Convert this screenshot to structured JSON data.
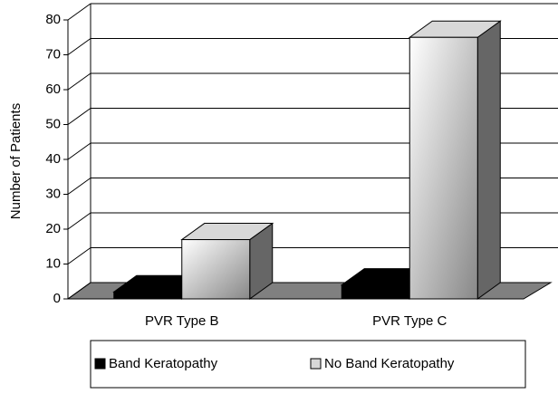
{
  "chart_data": {
    "type": "bar3d",
    "y_label": "Number of Patients",
    "categories": [
      "PVR Type B",
      "PVR Type C"
    ],
    "series": [
      {
        "name": "Band Keratopathy",
        "color": "#000000",
        "values": [
          2,
          4
        ]
      },
      {
        "name": "No Band Keratopathy",
        "color": "#d8d8d8",
        "values": [
          17,
          75
        ]
      }
    ],
    "ylim": [
      0,
      80
    ],
    "yticks": [
      0,
      10,
      20,
      30,
      40,
      50,
      60,
      70,
      80
    ],
    "grid": true,
    "legend": "bottom"
  }
}
